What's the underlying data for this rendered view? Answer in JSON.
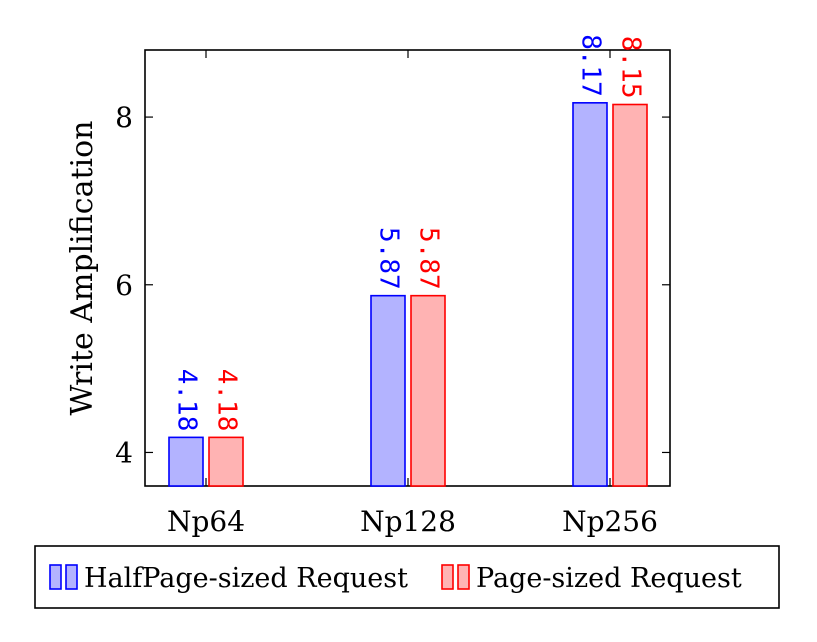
{
  "chart_data": {
    "type": "bar",
    "title": "",
    "xlabel": "",
    "ylabel": "Write Amplification",
    "categories": [
      "Np64",
      "Np128",
      "Np256"
    ],
    "series": [
      {
        "name": "HalfPage-sized Request",
        "values": [
          4.18,
          5.87,
          8.17
        ],
        "labels": [
          "4.18",
          "5.87",
          "8.17"
        ],
        "stroke": "#0000ff",
        "fill": "#b3b3ff"
      },
      {
        "name": "Page-sized Request",
        "values": [
          4.18,
          5.87,
          8.15
        ],
        "labels": [
          "4.18",
          "5.87",
          "8.15"
        ],
        "stroke": "#ff0000",
        "fill": "#ffb3b3"
      }
    ],
    "ylim": [
      3.6,
      8.8
    ],
    "yticks": [
      4,
      6,
      8
    ],
    "ytick_labels": [
      "4",
      "6",
      "8"
    ],
    "grid": false,
    "legend_position": "bottom"
  }
}
